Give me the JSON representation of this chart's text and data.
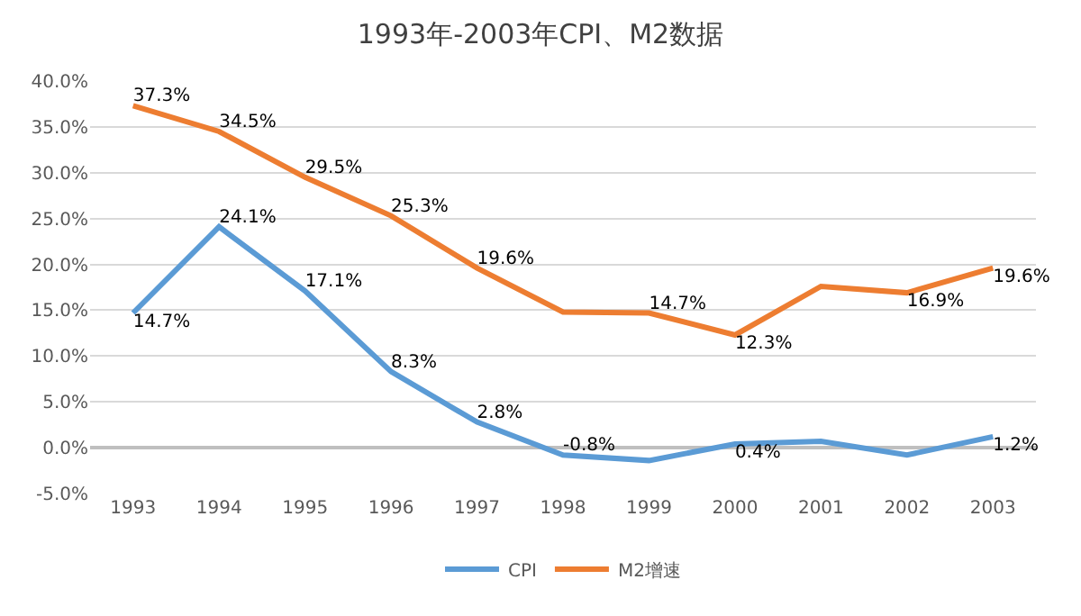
{
  "chart_data": {
    "type": "line",
    "title": "1993年-2003年CPI、M2数据",
    "categories": [
      "1993",
      "1994",
      "1995",
      "1996",
      "1997",
      "1998",
      "1999",
      "2000",
      "2001",
      "2002",
      "2003"
    ],
    "series": [
      {
        "name": "CPI",
        "color": "#5b9bd5",
        "values": [
          14.7,
          24.1,
          17.1,
          8.3,
          2.8,
          -0.8,
          -1.4,
          0.4,
          0.7,
          -0.8,
          1.2
        ],
        "value_labels": [
          "14.7%",
          "24.1%",
          "17.1%",
          "8.3%",
          "2.8%",
          "-0.8%",
          null,
          "0.4%",
          null,
          null,
          "1.2%"
        ]
      },
      {
        "name": "M2增速",
        "color": "#ed7d31",
        "values": [
          37.3,
          34.5,
          29.5,
          25.3,
          19.6,
          14.8,
          14.7,
          12.3,
          17.6,
          16.9,
          19.6
        ],
        "value_labels": [
          "37.3%",
          "34.5%",
          "29.5%",
          "25.3%",
          "19.6%",
          null,
          "14.7%",
          "12.3%",
          null,
          "16.9%",
          "19.6%"
        ]
      }
    ],
    "ylim": [
      -5,
      40
    ],
    "yticks": [
      {
        "value": -5,
        "label": "-5.0%"
      },
      {
        "value": 0,
        "label": "0.0%"
      },
      {
        "value": 5,
        "label": "5.0%"
      },
      {
        "value": 10,
        "label": "10.0%"
      },
      {
        "value": 15,
        "label": "15.0%"
      },
      {
        "value": 20,
        "label": "20.0%"
      },
      {
        "value": 25,
        "label": "25.0%"
      },
      {
        "value": 30,
        "label": "30.0%"
      },
      {
        "value": 35,
        "label": "35.0%"
      },
      {
        "value": 40,
        "label": "40.0%"
      }
    ],
    "grid": "y",
    "legend": "bottom",
    "marker": "none",
    "line_style": "solid"
  }
}
